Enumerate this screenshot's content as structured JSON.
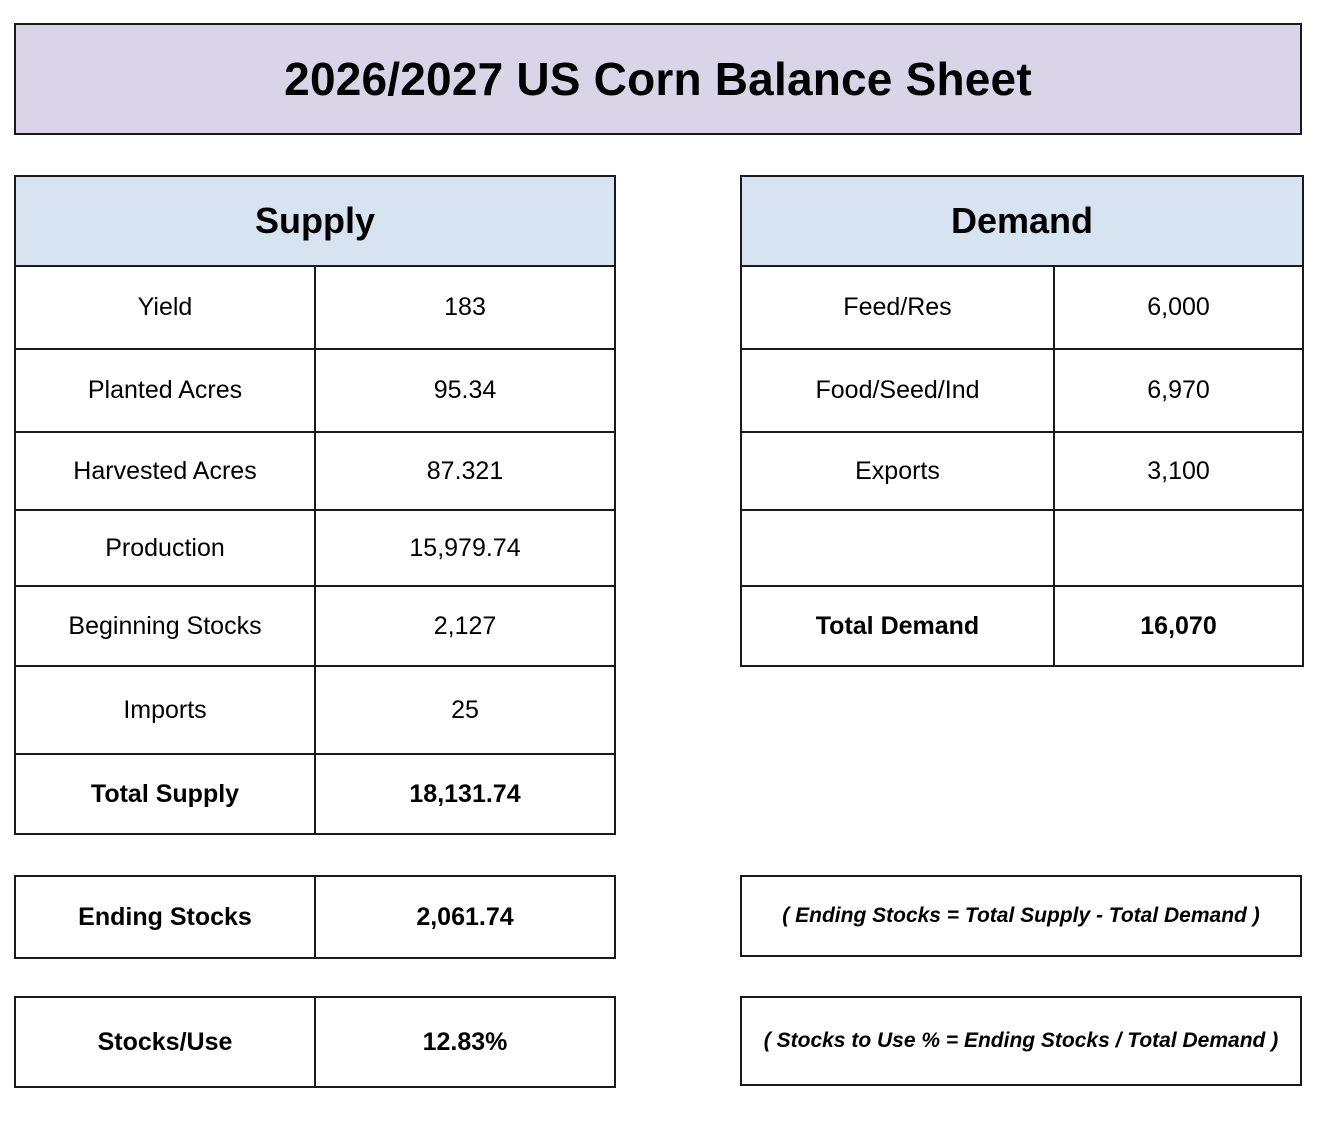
{
  "title": "2026/2027 US Corn Balance Sheet",
  "supply": {
    "header": "Supply",
    "rows": [
      {
        "label": "Yield",
        "value": "183"
      },
      {
        "label": "Planted Acres",
        "value": "95.34"
      },
      {
        "label": "Harvested Acres",
        "value": "87.321"
      },
      {
        "label": "Production",
        "value": "15,979.74"
      },
      {
        "label": "Beginning Stocks",
        "value": "2,127"
      },
      {
        "label": "Imports",
        "value": "25"
      }
    ],
    "total": {
      "label": "Total Supply",
      "value": "18,131.74"
    }
  },
  "demand": {
    "header": "Demand",
    "rows": [
      {
        "label": "Feed/Res",
        "value": "6,000"
      },
      {
        "label": "Food/Seed/Ind",
        "value": "6,970"
      },
      {
        "label": "Exports",
        "value": "3,100"
      },
      {
        "label": "",
        "value": ""
      }
    ],
    "total": {
      "label": "Total Demand",
      "value": "16,070"
    }
  },
  "ending_stocks": {
    "label": "Ending Stocks",
    "value": "2,061.74",
    "formula": "( Ending Stocks = Total Supply - Total Demand )"
  },
  "stocks_use": {
    "label": "Stocks/Use",
    "value": "12.83%",
    "formula": "( Stocks to Use % = Ending Stocks / Total Demand )"
  },
  "colors": {
    "title_background": "#d9d4e8",
    "header_background": "#d7e3f0",
    "border": "#1a1a1a"
  }
}
